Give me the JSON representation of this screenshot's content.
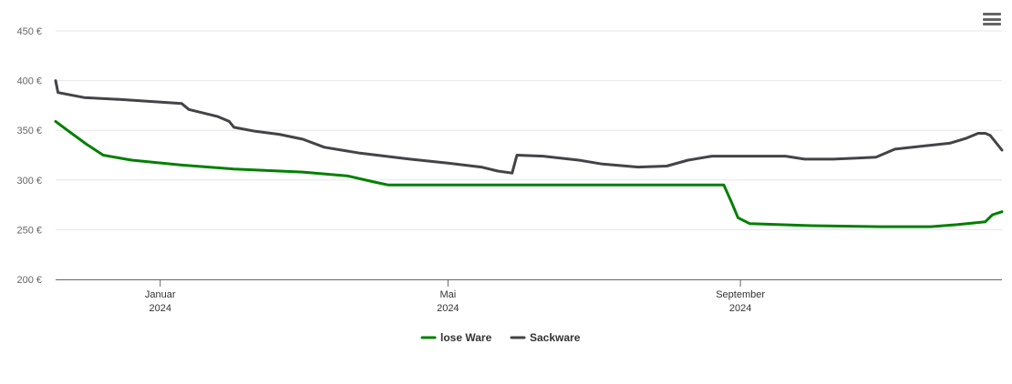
{
  "chart_data": {
    "type": "line",
    "title": "",
    "xlabel": "",
    "ylabel": "",
    "ylim": [
      200,
      450
    ],
    "y_ticks": [
      "200 €",
      "250 €",
      "300 €",
      "350 €",
      "400 €",
      "450 €"
    ],
    "y_tick_values": [
      200,
      250,
      300,
      350,
      400,
      450
    ],
    "x_range": [
      "2023-11-18",
      "2024-12-20"
    ],
    "x_ticks": [
      {
        "date": "2024-01-01",
        "month": "Januar",
        "year": "2024"
      },
      {
        "date": "2024-05-01",
        "month": "Mai",
        "year": "2024"
      },
      {
        "date": "2024-09-01",
        "month": "September",
        "year": "2024"
      }
    ],
    "grid": true,
    "legend_position": "bottom-center",
    "series": [
      {
        "name": "lose Ware",
        "color": "#008000",
        "points": [
          [
            "2023-11-18",
            359
          ],
          [
            "2023-11-23",
            350
          ],
          [
            "2023-12-01",
            336
          ],
          [
            "2023-12-08",
            325
          ],
          [
            "2023-12-20",
            320
          ],
          [
            "2024-01-10",
            315
          ],
          [
            "2024-02-01",
            311
          ],
          [
            "2024-03-01",
            308
          ],
          [
            "2024-03-20",
            304
          ],
          [
            "2024-03-31",
            298
          ],
          [
            "2024-04-06",
            295
          ],
          [
            "2024-05-01",
            295
          ],
          [
            "2024-06-01",
            295
          ],
          [
            "2024-07-01",
            295
          ],
          [
            "2024-08-01",
            295
          ],
          [
            "2024-08-25",
            295
          ],
          [
            "2024-08-28",
            279
          ],
          [
            "2024-08-31",
            262
          ],
          [
            "2024-09-05",
            256
          ],
          [
            "2024-10-01",
            254
          ],
          [
            "2024-10-30",
            253
          ],
          [
            "2024-11-20",
            253
          ],
          [
            "2024-12-01",
            255
          ],
          [
            "2024-12-13",
            258
          ],
          [
            "2024-12-16",
            265
          ],
          [
            "2024-12-20",
            268
          ]
        ]
      },
      {
        "name": "Sackware",
        "color": "#434348",
        "points": [
          [
            "2023-11-18",
            400
          ],
          [
            "2023-11-19",
            388
          ],
          [
            "2023-11-30",
            383
          ],
          [
            "2023-12-15",
            381
          ],
          [
            "2024-01-10",
            377
          ],
          [
            "2024-01-13",
            371
          ],
          [
            "2024-01-25",
            364
          ],
          [
            "2024-01-30",
            359
          ],
          [
            "2024-02-01",
            353
          ],
          [
            "2024-02-10",
            349
          ],
          [
            "2024-02-20",
            346
          ],
          [
            "2024-03-01",
            341
          ],
          [
            "2024-03-10",
            333
          ],
          [
            "2024-03-25",
            327
          ],
          [
            "2024-04-15",
            321
          ],
          [
            "2024-05-01",
            317
          ],
          [
            "2024-05-15",
            313
          ],
          [
            "2024-05-22",
            309
          ],
          [
            "2024-05-28",
            307
          ],
          [
            "2024-05-30",
            325
          ],
          [
            "2024-06-10",
            324
          ],
          [
            "2024-06-25",
            320
          ],
          [
            "2024-07-05",
            316
          ],
          [
            "2024-07-20",
            313
          ],
          [
            "2024-08-01",
            314
          ],
          [
            "2024-08-10",
            320
          ],
          [
            "2024-08-20",
            324
          ],
          [
            "2024-08-31",
            324
          ],
          [
            "2024-09-20",
            324
          ],
          [
            "2024-09-28",
            321
          ],
          [
            "2024-10-10",
            321
          ],
          [
            "2024-10-20",
            322
          ],
          [
            "2024-10-28",
            323
          ],
          [
            "2024-11-05",
            331
          ],
          [
            "2024-11-20",
            335
          ],
          [
            "2024-11-28",
            337
          ],
          [
            "2024-12-05",
            342
          ],
          [
            "2024-12-10",
            347
          ],
          [
            "2024-12-13",
            347
          ],
          [
            "2024-12-15",
            345
          ],
          [
            "2024-12-20",
            330
          ]
        ]
      }
    ]
  },
  "menu": {
    "icon": "hamburger-menu-icon"
  }
}
